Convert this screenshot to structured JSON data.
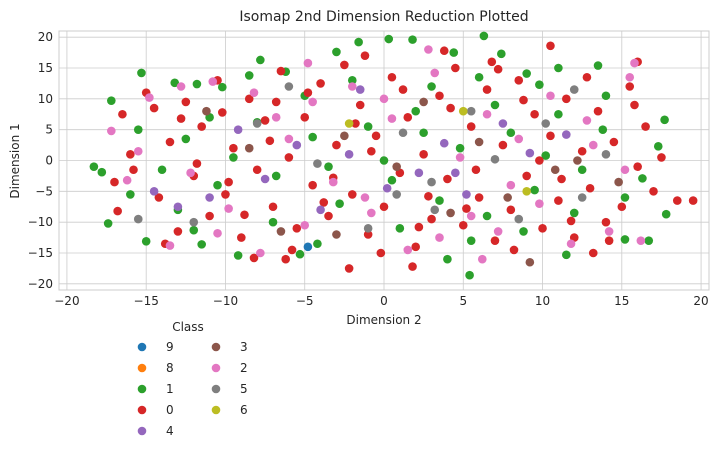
{
  "chart_data": {
    "type": "scatter",
    "title": "Isomap 2nd Dimension Reduction Plotted",
    "xlabel": "Dimension 2",
    "ylabel": "Dimension 1",
    "xlim": [
      -20.5,
      20.5
    ],
    "ylim": [
      -21,
      21
    ],
    "xticks": [
      -20,
      -15,
      -10,
      -5,
      0,
      5,
      10,
      15,
      20
    ],
    "yticks": [
      -20,
      -15,
      -10,
      -5,
      0,
      5,
      10,
      15,
      20
    ],
    "grid": true,
    "legend": {
      "title": "Class",
      "placement": "below-left",
      "columns": [
        [
          "9",
          "8",
          "1",
          "0",
          "4"
        ],
        [
          "3",
          "2",
          "5",
          "6"
        ]
      ]
    },
    "colors": {
      "9": "#1f77b4",
      "8": "#ff7f0e",
      "1": "#2ca02c",
      "0": "#d62728",
      "4": "#9467bd",
      "3": "#8c564b",
      "2": "#e377c2",
      "5": "#7f7f7f",
      "6": "#bcbd22"
    },
    "series": [
      {
        "name": "1",
        "points": [
          [
            -18.3,
            -1.0
          ],
          [
            -17.8,
            -1.9
          ],
          [
            -17.4,
            -10.2
          ],
          [
            -17.2,
            9.7
          ],
          [
            -15.3,
            14.2
          ],
          [
            -15.0,
            -13.1
          ],
          [
            -13.2,
            12.6
          ],
          [
            -12.0,
            -11.3
          ],
          [
            -11.8,
            12.4
          ],
          [
            -10.2,
            11.9
          ],
          [
            -9.2,
            -15.4
          ],
          [
            -7.8,
            16.3
          ],
          [
            -6.2,
            14.4
          ],
          [
            -5.3,
            -15.2
          ],
          [
            -3.0,
            17.6
          ],
          [
            -1.6,
            19.2
          ],
          [
            0.3,
            19.7
          ],
          [
            1.8,
            19.6
          ],
          [
            4.4,
            17.5
          ],
          [
            6.3,
            20.2
          ],
          [
            5.4,
            -18.6
          ],
          [
            7.4,
            17.3
          ],
          [
            9.0,
            14.1
          ],
          [
            11.0,
            15.0
          ],
          [
            11.5,
            -15.3
          ],
          [
            13.5,
            15.4
          ],
          [
            15.2,
            -12.8
          ],
          [
            16.7,
            -13.0
          ],
          [
            17.7,
            6.6
          ],
          [
            17.8,
            -8.7
          ],
          [
            17.3,
            2.3
          ],
          [
            16.3,
            -2.9
          ],
          [
            -14.0,
            -1.5
          ],
          [
            -12.5,
            3.5
          ],
          [
            -10.5,
            -4.0
          ],
          [
            -8.0,
            6.2
          ],
          [
            -6.8,
            -2.5
          ],
          [
            -4.5,
            3.8
          ],
          [
            -2.8,
            -7.0
          ],
          [
            -1.0,
            5.5
          ],
          [
            0.5,
            -3.2
          ],
          [
            2.0,
            8.0
          ],
          [
            3.5,
            -6.5
          ],
          [
            4.8,
            2.0
          ],
          [
            6.5,
            -9.0
          ],
          [
            8.0,
            4.5
          ],
          [
            9.5,
            -4.8
          ],
          [
            11.0,
            7.5
          ],
          [
            12.5,
            -1.5
          ],
          [
            14.0,
            10.5
          ],
          [
            -13.0,
            -8.0
          ],
          [
            -11.0,
            7.0
          ],
          [
            -9.5,
            0.5
          ],
          [
            -7.0,
            -10.0
          ],
          [
            -5.0,
            10.5
          ],
          [
            -3.5,
            -1.0
          ],
          [
            -2.0,
            13.0
          ],
          [
            1.0,
            -11.0
          ],
          [
            3.0,
            12.0
          ],
          [
            5.5,
            -13.0
          ],
          [
            7.0,
            9.0
          ],
          [
            8.8,
            -11.5
          ],
          [
            10.2,
            0.8
          ],
          [
            12.0,
            -8.5
          ],
          [
            13.8,
            5.0
          ],
          [
            15.2,
            -6.0
          ],
          [
            -15.5,
            5.0
          ],
          [
            -16.0,
            -5.5
          ],
          [
            0.0,
            0.0
          ],
          [
            2.5,
            4.5
          ],
          [
            -4.2,
            -13.5
          ],
          [
            6.0,
            13.5
          ],
          [
            -8.5,
            13.8
          ],
          [
            9.8,
            12.3
          ],
          [
            -11.5,
            -13.6
          ],
          [
            4.0,
            -16.0
          ]
        ]
      },
      {
        "name": "0",
        "points": [
          [
            -17.0,
            -3.5
          ],
          [
            -16.5,
            7.5
          ],
          [
            -16.8,
            -8.2
          ],
          [
            -15.8,
            -1.5
          ],
          [
            -14.5,
            8.5
          ],
          [
            -14.2,
            -6.0
          ],
          [
            -13.5,
            3.0
          ],
          [
            -13.0,
            -11.5
          ],
          [
            -12.5,
            9.5
          ],
          [
            -12.0,
            -2.5
          ],
          [
            -11.5,
            5.5
          ],
          [
            -11.0,
            -9.0
          ],
          [
            -10.5,
            13.0
          ],
          [
            -10.0,
            -5.5
          ],
          [
            -9.5,
            2.0
          ],
          [
            -9.0,
            -12.5
          ],
          [
            -8.5,
            10.0
          ],
          [
            -8.0,
            -1.5
          ],
          [
            -7.5,
            6.5
          ],
          [
            -7.0,
            -7.5
          ],
          [
            -6.5,
            14.5
          ],
          [
            -6.0,
            0.5
          ],
          [
            -5.5,
            -11.0
          ],
          [
            -5.0,
            7.0
          ],
          [
            -4.5,
            -4.0
          ],
          [
            -4.0,
            12.5
          ],
          [
            -3.5,
            -9.0
          ],
          [
            -3.0,
            2.5
          ],
          [
            -2.5,
            15.5
          ],
          [
            -2.0,
            -5.5
          ],
          [
            -1.5,
            9.0
          ],
          [
            -1.0,
            -12.0
          ],
          [
            -0.5,
            4.0
          ],
          [
            0.0,
            -7.5
          ],
          [
            0.5,
            13.5
          ],
          [
            1.0,
            -2.0
          ],
          [
            1.5,
            7.0
          ],
          [
            2.0,
            -14.0
          ],
          [
            2.5,
            1.0
          ],
          [
            3.0,
            -9.5
          ],
          [
            3.5,
            10.5
          ],
          [
            4.0,
            -3.0
          ],
          [
            4.5,
            15.0
          ],
          [
            5.0,
            -10.5
          ],
          [
            5.5,
            5.5
          ],
          [
            6.0,
            -6.0
          ],
          [
            6.5,
            11.5
          ],
          [
            7.0,
            -13.0
          ],
          [
            7.5,
            2.5
          ],
          [
            8.0,
            -8.0
          ],
          [
            8.5,
            13.0
          ],
          [
            9.0,
            -2.5
          ],
          [
            9.5,
            7.5
          ],
          [
            10.0,
            -11.0
          ],
          [
            10.5,
            4.0
          ],
          [
            11.0,
            -6.5
          ],
          [
            11.5,
            10.0
          ],
          [
            12.0,
            -12.5
          ],
          [
            12.5,
            1.5
          ],
          [
            13.0,
            -4.5
          ],
          [
            13.5,
            8.0
          ],
          [
            14.0,
            -10.0
          ],
          [
            14.5,
            3.0
          ],
          [
            15.0,
            -7.5
          ],
          [
            15.5,
            12.0
          ],
          [
            16.0,
            -1.0
          ],
          [
            16.5,
            5.5
          ],
          [
            17.0,
            -5.0
          ],
          [
            18.5,
            -6.5
          ],
          [
            19.5,
            -6.5
          ],
          [
            -15.0,
            11.0
          ],
          [
            -13.8,
            -13.5
          ],
          [
            -11.8,
            -0.5
          ],
          [
            -10.2,
            7.8
          ],
          [
            -8.8,
            -8.8
          ],
          [
            -7.2,
            3.2
          ],
          [
            -5.8,
            -14.5
          ],
          [
            -4.8,
            11.0
          ],
          [
            -3.2,
            -2.8
          ],
          [
            -1.8,
            6.0
          ],
          [
            -0.2,
            -15.0
          ],
          [
            1.2,
            11.5
          ],
          [
            2.8,
            -5.8
          ],
          [
            4.2,
            8.5
          ],
          [
            5.8,
            -1.5
          ],
          [
            7.2,
            14.8
          ],
          [
            8.2,
            -14.5
          ],
          [
            9.8,
            0.0
          ],
          [
            11.2,
            -3.0
          ],
          [
            12.8,
            13.5
          ],
          [
            14.2,
            -13.0
          ],
          [
            15.8,
            9.0
          ],
          [
            -12.8,
            6.8
          ],
          [
            -9.8,
            -3.5
          ],
          [
            -6.8,
            9.5
          ],
          [
            -3.8,
            -6.8
          ],
          [
            -0.8,
            1.5
          ],
          [
            2.2,
            -10.8
          ],
          [
            5.2,
            -7.8
          ],
          [
            8.8,
            9.8
          ],
          [
            11.8,
            -9.8
          ],
          [
            -2.2,
            -17.5
          ],
          [
            1.8,
            -17.2
          ],
          [
            10.5,
            18.6
          ],
          [
            16.0,
            16.0
          ],
          [
            -16.0,
            1.0
          ],
          [
            17.5,
            0.5
          ],
          [
            -1.2,
            17.0
          ],
          [
            6.8,
            16.0
          ],
          [
            -8.2,
            -15.8
          ],
          [
            -6.2,
            -16.0
          ],
          [
            13.2,
            -15.0
          ],
          [
            3.8,
            17.8
          ]
        ]
      },
      {
        "name": "4",
        "points": [
          [
            -14.5,
            -5.0
          ],
          [
            -11.0,
            -6.0
          ],
          [
            -9.2,
            5.0
          ],
          [
            -7.5,
            -3.0
          ],
          [
            -5.5,
            2.5
          ],
          [
            -4.0,
            -8.0
          ],
          [
            -2.2,
            1.0
          ],
          [
            0.2,
            -4.5
          ],
          [
            2.2,
            -2.0
          ],
          [
            3.8,
            2.8
          ],
          [
            5.2,
            -5.5
          ],
          [
            7.5,
            6.0
          ],
          [
            9.2,
            1.2
          ],
          [
            11.5,
            4.2
          ],
          [
            -13.0,
            -7.5
          ],
          [
            -1.5,
            11.5
          ],
          [
            4.5,
            -2.0
          ]
        ]
      },
      {
        "name": "3",
        "points": [
          [
            -11.2,
            8.0
          ],
          [
            -6.5,
            -11.5
          ],
          [
            -2.5,
            4.0
          ],
          [
            0.8,
            -1.0
          ],
          [
            2.5,
            9.5
          ],
          [
            4.2,
            -8.5
          ],
          [
            6.0,
            3.0
          ],
          [
            7.8,
            -6.0
          ],
          [
            9.2,
            -16.5
          ],
          [
            10.8,
            -1.5
          ],
          [
            12.2,
            0.0
          ],
          [
            14.8,
            -3.5
          ],
          [
            -8.5,
            2.0
          ],
          [
            -3.0,
            -12.0
          ]
        ]
      },
      {
        "name": "2",
        "points": [
          [
            -17.2,
            4.8
          ],
          [
            -16.2,
            -3.2
          ],
          [
            -15.5,
            1.5
          ],
          [
            -14.8,
            10.2
          ],
          [
            -13.5,
            -13.8
          ],
          [
            -12.2,
            -2.0
          ],
          [
            -10.8,
            12.8
          ],
          [
            -9.8,
            -7.8
          ],
          [
            -8.2,
            11.0
          ],
          [
            -7.8,
            -15.0
          ],
          [
            -6.0,
            3.5
          ],
          [
            -5.0,
            -10.5
          ],
          [
            -4.5,
            9.5
          ],
          [
            -3.2,
            -3.5
          ],
          [
            -2.0,
            12.0
          ],
          [
            -0.8,
            -8.5
          ],
          [
            0.5,
            6.8
          ],
          [
            1.5,
            -14.5
          ],
          [
            2.8,
            18.0
          ],
          [
            3.5,
            -12.5
          ],
          [
            4.8,
            0.5
          ],
          [
            5.5,
            -9.0
          ],
          [
            6.5,
            7.5
          ],
          [
            7.2,
            -11.5
          ],
          [
            8.5,
            3.5
          ],
          [
            9.8,
            -7.0
          ],
          [
            10.5,
            10.5
          ],
          [
            11.8,
            -13.5
          ],
          [
            12.8,
            6.5
          ],
          [
            14.2,
            -11.5
          ],
          [
            15.2,
            -1.5
          ],
          [
            15.5,
            13.5
          ],
          [
            15.8,
            15.8
          ],
          [
            16.2,
            -13.0
          ],
          [
            -12.8,
            12.0
          ],
          [
            -10.5,
            -11.8
          ],
          [
            -4.8,
            15.8
          ],
          [
            -1.2,
            -6.0
          ],
          [
            3.2,
            14.2
          ],
          [
            8.0,
            -4.0
          ],
          [
            13.2,
            2.5
          ],
          [
            -6.8,
            7.0
          ],
          [
            0.0,
            10.0
          ],
          [
            6.2,
            -16.0
          ]
        ]
      },
      {
        "name": "5",
        "points": [
          [
            -12.0,
            -10.0
          ],
          [
            -8.0,
            6.0
          ],
          [
            -4.2,
            -0.5
          ],
          [
            -1.0,
            -11.0
          ],
          [
            1.2,
            4.5
          ],
          [
            3.2,
            -8.0
          ],
          [
            5.5,
            8.0
          ],
          [
            8.5,
            -9.5
          ],
          [
            10.2,
            6.0
          ],
          [
            12.5,
            -6.0
          ],
          [
            14.0,
            1.0
          ],
          [
            -15.5,
            -9.5
          ],
          [
            0.8,
            -5.5
          ],
          [
            7.0,
            0.2
          ],
          [
            -6.0,
            12.0
          ],
          [
            12.0,
            11.5
          ],
          [
            3.0,
            -3.5
          ]
        ]
      },
      {
        "name": "6",
        "points": [
          [
            -2.2,
            6.0
          ],
          [
            5.0,
            8.0
          ],
          [
            9.0,
            -5.0
          ]
        ]
      },
      {
        "name": "9",
        "points": [
          [
            -4.8,
            -14.0
          ]
        ]
      }
    ]
  }
}
